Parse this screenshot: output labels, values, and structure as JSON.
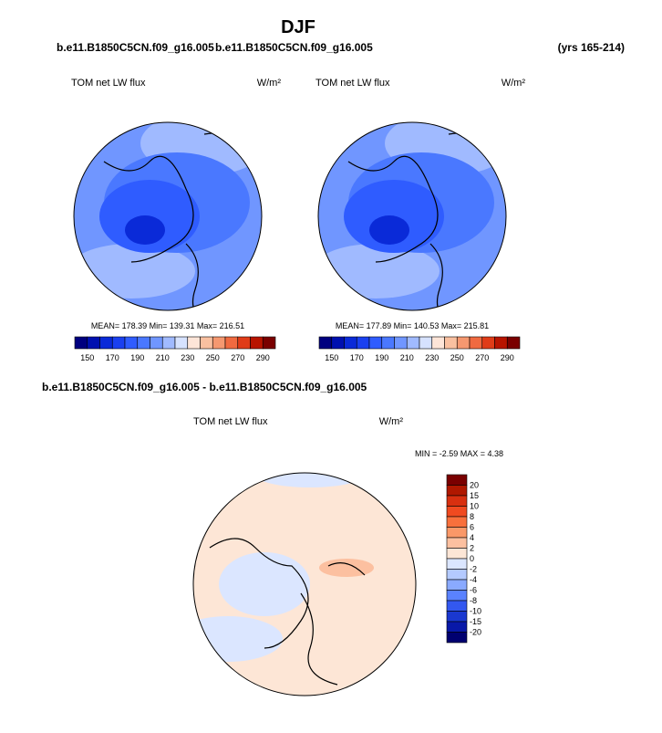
{
  "header": {
    "title": "DJF",
    "left_case": "b.e11.B1850C5CN.f09_g16.005",
    "right_case": "b.e11.B1850C5CN.f09_g16.005",
    "years": "(yrs 165-214)"
  },
  "panels": [
    {
      "title": "TOM net LW flux",
      "units": "W/m²",
      "stats": "MEAN= 178.39  Min= 139.31  Max= 216.51"
    },
    {
      "title": "TOM net LW flux",
      "units": "W/m²",
      "stats": "MEAN= 177.89  Min= 140.53  Max= 215.81"
    }
  ],
  "colorbar": {
    "labels": [
      150,
      170,
      190,
      210,
      230,
      250,
      270,
      290
    ],
    "colors": [
      "#00007f",
      "#0010b0",
      "#0a2ad8",
      "#1a40f0",
      "#2f5cff",
      "#4a78ff",
      "#7096ff",
      "#a0baff",
      "#d6e2ff",
      "#fde5d8",
      "#f9c0a0",
      "#f59870",
      "#f06a40",
      "#e03c18",
      "#b81400",
      "#7a0000"
    ]
  },
  "difference": {
    "title": "b.e11.B1850C5CN.f09_g16.005 - b.e11.B1850C5CN.f09_g16.005",
    "panel_title": "TOM net LW flux",
    "units": "W/m²",
    "stats": "MIN =  -2.59 MAX =   4.38",
    "colorbar": {
      "labels": [
        20,
        15,
        10,
        8,
        6,
        4,
        2,
        0,
        -2,
        -4,
        -6,
        -8,
        -10,
        -15,
        -20
      ],
      "colors": [
        "#7a0000",
        "#b01800",
        "#d83010",
        "#f04a20",
        "#f8703c",
        "#fa9868",
        "#fcc0a0",
        "#fde6d6",
        "#dbe6ff",
        "#b4caff",
        "#8aaaff",
        "#5a82ff",
        "#3358f0",
        "#1a38d0",
        "#0818a8",
        "#000070"
      ]
    }
  }
}
